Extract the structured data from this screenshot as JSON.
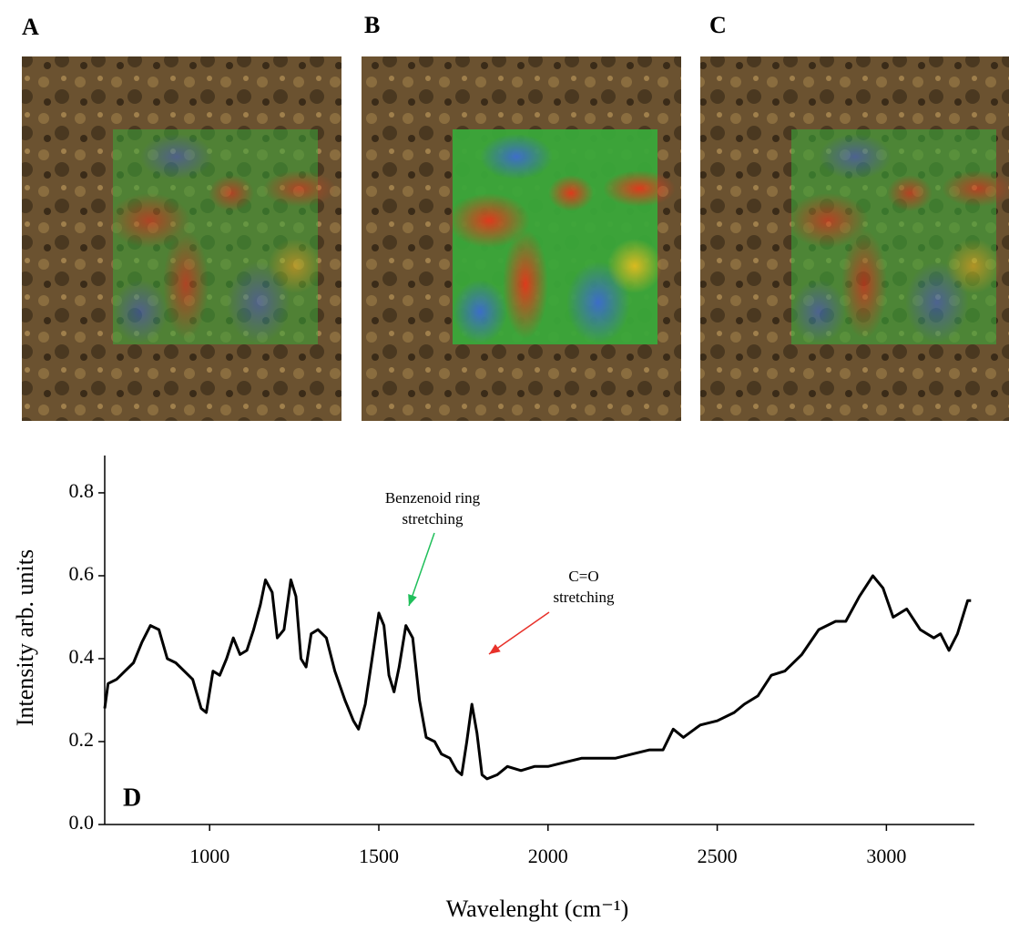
{
  "panels": [
    "A",
    "B",
    "C"
  ],
  "chart_data": {
    "type": "line",
    "label": "D",
    "xlabel": "Wavelenght (cm⁻¹)",
    "ylabel": "Intensity arb. units",
    "color": "#000000",
    "xlim": [
      690,
      3260
    ],
    "ylim": [
      0,
      0.89
    ],
    "xticks": [
      1000,
      1500,
      2000,
      2500,
      3000
    ],
    "yticks": [
      {
        "value": 0,
        "label": "0.0"
      },
      0.2,
      0.4,
      0.6,
      0.8
    ],
    "annotations": [
      {
        "text": [
          "Benzenoid ring",
          "stretching"
        ],
        "color": "#1fbf5a"
      },
      {
        "text": [
          "C=O",
          "stretching"
        ],
        "color": "#e8312a"
      }
    ],
    "x": [
      690,
      700,
      725,
      750,
      775,
      800,
      825,
      850,
      875,
      900,
      925,
      950,
      975,
      990,
      1010,
      1030,
      1050,
      1070,
      1090,
      1110,
      1130,
      1150,
      1165,
      1185,
      1200,
      1220,
      1240,
      1255,
      1270,
      1285,
      1300,
      1320,
      1345,
      1370,
      1400,
      1425,
      1440,
      1460,
      1480,
      1500,
      1515,
      1530,
      1545,
      1560,
      1580,
      1600,
      1620,
      1640,
      1665,
      1685,
      1710,
      1730,
      1745,
      1760,
      1775,
      1790,
      1805,
      1820,
      1850,
      1880,
      1920,
      1960,
      2000,
      2050,
      2100,
      2150,
      2200,
      2250,
      2300,
      2340,
      2370,
      2400,
      2450,
      2500,
      2550,
      2580,
      2620,
      2660,
      2700,
      2750,
      2800,
      2850,
      2880,
      2920,
      2960,
      2990,
      3020,
      3060,
      3100,
      3140,
      3160,
      3185,
      3210,
      3240,
      3250
    ],
    "values": [
      0.28,
      0.34,
      0.35,
      0.37,
      0.39,
      0.44,
      0.48,
      0.47,
      0.4,
      0.39,
      0.37,
      0.35,
      0.28,
      0.27,
      0.37,
      0.36,
      0.4,
      0.45,
      0.41,
      0.42,
      0.47,
      0.53,
      0.59,
      0.56,
      0.45,
      0.47,
      0.59,
      0.55,
      0.4,
      0.38,
      0.46,
      0.47,
      0.45,
      0.37,
      0.3,
      0.25,
      0.23,
      0.29,
      0.4,
      0.51,
      0.48,
      0.36,
      0.32,
      0.38,
      0.48,
      0.45,
      0.3,
      0.21,
      0.2,
      0.17,
      0.16,
      0.13,
      0.12,
      0.2,
      0.29,
      0.22,
      0.12,
      0.11,
      0.12,
      0.14,
      0.13,
      0.14,
      0.14,
      0.15,
      0.16,
      0.16,
      0.16,
      0.17,
      0.18,
      0.18,
      0.23,
      0.21,
      0.24,
      0.25,
      0.27,
      0.29,
      0.31,
      0.36,
      0.37,
      0.41,
      0.47,
      0.49,
      0.49,
      0.55,
      0.6,
      0.57,
      0.5,
      0.52,
      0.47,
      0.45,
      0.46,
      0.42,
      0.46,
      0.54,
      0.54
    ]
  }
}
